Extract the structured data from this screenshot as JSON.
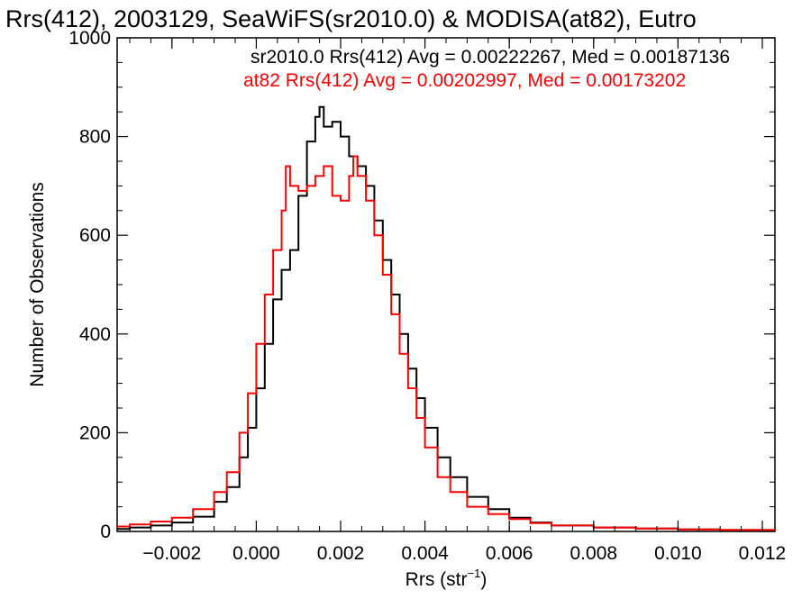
{
  "chart_data": {
    "type": "line",
    "title": "Rrs(412), 2003129, SeaWiFS(sr2010.0) & MODISA(at82), Eutro",
    "xlabel_main": "Rrs (str",
    "xlabel_sup": "−1",
    "xlabel_end": ")",
    "ylabel": "Number of Observations",
    "xlim": [
      -0.0033,
      0.0123
    ],
    "ylim": [
      0,
      1000
    ],
    "xticks": [
      -0.002,
      0.0,
      0.002,
      0.004,
      0.006,
      0.008,
      0.01,
      0.012
    ],
    "xtick_labels": [
      "−0.002",
      "0.000",
      "0.002",
      "0.004",
      "0.006",
      "0.008",
      "0.010",
      "0.012"
    ],
    "yticks": [
      0,
      200,
      400,
      600,
      800,
      1000
    ],
    "ytick_labels": [
      "0",
      "200",
      "400",
      "600",
      "800",
      "1000"
    ],
    "grid": false,
    "legend_position": "top-right",
    "series": [
      {
        "name": "sr2010.0 Rrs(412) Avg = 0.00222267, Med = 0.00187136",
        "color": "#000000",
        "x": [
          -0.0033,
          -0.003,
          -0.0025,
          -0.002,
          -0.0015,
          -0.001,
          -0.0007,
          -0.0004,
          -0.0002,
          0.0,
          0.0002,
          0.0004,
          0.0006,
          0.0008,
          0.001,
          0.0012,
          0.0014,
          0.0015,
          0.0016,
          0.0018,
          0.002,
          0.0022,
          0.0024,
          0.0026,
          0.0028,
          0.003,
          0.0032,
          0.0034,
          0.0036,
          0.0038,
          0.004,
          0.0043,
          0.0046,
          0.005,
          0.0055,
          0.006,
          0.0065,
          0.007,
          0.008,
          0.009,
          0.01,
          0.011,
          0.0123
        ],
        "y": [
          5,
          8,
          12,
          18,
          30,
          60,
          90,
          150,
          210,
          290,
          380,
          470,
          530,
          570,
          680,
          790,
          840,
          860,
          820,
          830,
          800,
          760,
          740,
          700,
          630,
          550,
          480,
          400,
          330,
          270,
          210,
          150,
          110,
          70,
          45,
          28,
          18,
          12,
          8,
          6,
          4,
          3,
          2
        ]
      },
      {
        "name": "at82 Rrs(412) Avg = 0.00202997, Med = 0.00173202",
        "color": "#ff0000",
        "x": [
          -0.0033,
          -0.003,
          -0.0025,
          -0.002,
          -0.0015,
          -0.001,
          -0.0007,
          -0.0004,
          -0.0002,
          0.0,
          0.0002,
          0.0004,
          0.0006,
          0.0007,
          0.0008,
          0.001,
          0.0012,
          0.0014,
          0.0016,
          0.0018,
          0.002,
          0.0022,
          0.0023,
          0.0024,
          0.0026,
          0.0028,
          0.003,
          0.0032,
          0.0034,
          0.0036,
          0.0038,
          0.004,
          0.0043,
          0.0046,
          0.005,
          0.0055,
          0.006,
          0.0065,
          0.007,
          0.008,
          0.009,
          0.01,
          0.011,
          0.0123
        ],
        "y": [
          10,
          14,
          20,
          28,
          45,
          80,
          120,
          200,
          280,
          380,
          480,
          570,
          650,
          740,
          700,
          690,
          700,
          720,
          740,
          680,
          670,
          720,
          760,
          720,
          670,
          600,
          520,
          440,
          360,
          290,
          230,
          170,
          110,
          80,
          50,
          35,
          25,
          17,
          12,
          8,
          6,
          4,
          3,
          2
        ]
      }
    ]
  }
}
